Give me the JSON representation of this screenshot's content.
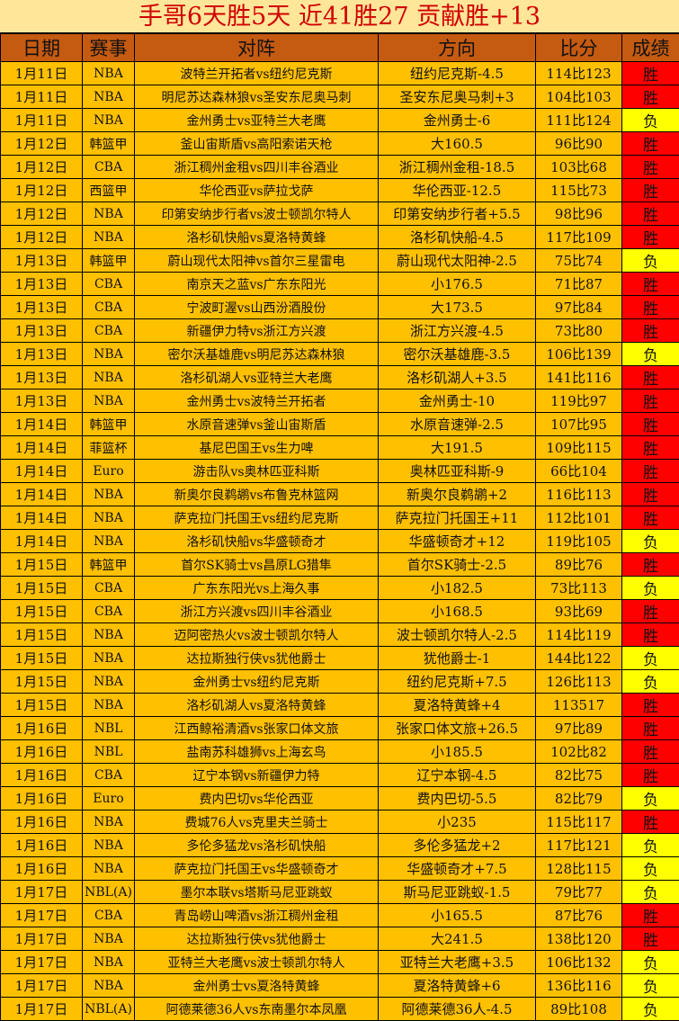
{
  "title": "手哥6天胜5天  近41胜27  贡献胜+13",
  "colors": {
    "header_bg": "#C55A11",
    "row_bg": "#FFC000",
    "win": "#FF0000",
    "loss": "#FFFF00",
    "title_text": "#D00000"
  },
  "headers": [
    "日期",
    "赛事",
    "对阵",
    "方向",
    "比分",
    "成绩"
  ],
  "rows": [
    [
      "1月11日",
      "NBA",
      "波特兰开拓者vs纽约尼克斯",
      "纽约尼克斯-4.5",
      "114比123",
      "胜"
    ],
    [
      "1月11日",
      "NBA",
      "明尼苏达森林狼vs圣安东尼奥马刺",
      "圣安东尼奥马刺+3",
      "104比103",
      "胜"
    ],
    [
      "1月11日",
      "NBA",
      "金州勇士vs亚特兰大老鹰",
      "金州勇士-6",
      "111比124",
      "负"
    ],
    [
      "1月12日",
      "韩篮甲",
      "釜山宙斯盾vs高阳索诺天枪",
      "大160.5",
      "96比90",
      "胜"
    ],
    [
      "1月12日",
      "CBA",
      "浙江稠州金租vs四川丰谷酒业",
      "浙江稠州金租-18.5",
      "103比68",
      "胜"
    ],
    [
      "1月12日",
      "西篮甲",
      "华伦西亚vs萨拉戈萨",
      "华伦西亚-12.5",
      "115比73",
      "胜"
    ],
    [
      "1月12日",
      "NBA",
      "印第安纳步行者vs波士顿凯尔特人",
      "印第安纳步行者+5.5",
      "98比96",
      "胜"
    ],
    [
      "1月12日",
      "NBA",
      "洛杉矶快船vs夏洛特黄蜂",
      "洛杉矶快船-4.5",
      "117比109",
      "胜"
    ],
    [
      "1月13日",
      "韩篮甲",
      "蔚山现代太阳神vs首尔三星雷电",
      "蔚山现代太阳神-2.5",
      "75比74",
      "负"
    ],
    [
      "1月13日",
      "CBA",
      "南京天之蓝vs广东东阳光",
      "小176.5",
      "71比87",
      "胜"
    ],
    [
      "1月13日",
      "CBA",
      "宁波町渥vs山西汾酒股份",
      "大173.5",
      "97比84",
      "胜"
    ],
    [
      "1月13日",
      "CBA",
      "新疆伊力特vs浙江方兴渡",
      "浙江方兴渡-4.5",
      "73比80",
      "胜"
    ],
    [
      "1月13日",
      "NBA",
      "密尔沃基雄鹿vs明尼苏达森林狼",
      "密尔沃基雄鹿-3.5",
      "106比139",
      "负"
    ],
    [
      "1月13日",
      "NBA",
      "洛杉矶湖人vs亚特兰大老鹰",
      "洛杉矶湖人+3.5",
      "141比116",
      "胜"
    ],
    [
      "1月13日",
      "NBA",
      "金州勇士vs波特兰开拓者",
      "金州勇士-10",
      "119比97",
      "胜"
    ],
    [
      "1月14日",
      "韩篮甲",
      "水原音速弹vs釜山宙斯盾",
      "水原音速弹-2.5",
      "107比95",
      "胜"
    ],
    [
      "1月14日",
      "菲篮杯",
      "基尼巴国王vs生力啤",
      "大191.5",
      "109比115",
      "胜"
    ],
    [
      "1月14日",
      "Euro",
      "游击队vs奥林匹亚科斯",
      "奥林匹亚科斯-9",
      "66比104",
      "胜"
    ],
    [
      "1月14日",
      "NBA",
      "新奥尔良鹈鹕vs布鲁克林篮网",
      "新奥尔良鹈鹕+2",
      "116比113",
      "胜"
    ],
    [
      "1月14日",
      "NBA",
      "萨克拉门托国王vs纽约尼克斯",
      "萨克拉门托国王+11",
      "112比101",
      "胜"
    ],
    [
      "1月14日",
      "NBA",
      "洛杉矶快船vs华盛顿奇才",
      "华盛顿奇才+12",
      "119比105",
      "负"
    ],
    [
      "1月15日",
      "韩篮甲",
      "首尔SK骑士vs昌原LG猎隼",
      "首尔SK骑士-2.5",
      "89比76",
      "胜"
    ],
    [
      "1月15日",
      "CBA",
      "广东东阳光vs上海久事",
      "小182.5",
      "73比113",
      "负"
    ],
    [
      "1月15日",
      "CBA",
      "浙江方兴渡vs四川丰谷酒业",
      "小168.5",
      "93比69",
      "胜"
    ],
    [
      "1月15日",
      "NBA",
      "迈阿密热火vs波士顿凯尔特人",
      "波士顿凯尔特人-2.5",
      "114比119",
      "胜"
    ],
    [
      "1月15日",
      "NBA",
      "达拉斯独行侠vs犹他爵士",
      "犹他爵士-1",
      "144比122",
      "负"
    ],
    [
      "1月15日",
      "NBA",
      "金州勇士vs纽约尼克斯",
      "纽约尼克斯+7.5",
      "126比113",
      "负"
    ],
    [
      "1月15日",
      "NBA",
      "洛杉矶湖人vs夏洛特黄蜂",
      "夏洛特黄蜂+4",
      "113517",
      "胜"
    ],
    [
      "1月16日",
      "NBL",
      "江西鲸裕清酒vs张家口体文旅",
      "张家口体文旅+26.5",
      "97比89",
      "胜"
    ],
    [
      "1月16日",
      "NBL",
      "盐南苏科雄狮vs上海玄鸟",
      "小185.5",
      "102比82",
      "胜"
    ],
    [
      "1月16日",
      "CBA",
      "辽宁本钢vs新疆伊力特",
      "辽宁本钢-4.5",
      "82比75",
      "胜"
    ],
    [
      "1月16日",
      "Euro",
      "费内巴切vs华伦西亚",
      "费内巴切-5.5",
      "82比79",
      "负"
    ],
    [
      "1月16日",
      "NBA",
      "费城76人vs克里夫兰骑士",
      "小235",
      "115比117",
      "胜"
    ],
    [
      "1月16日",
      "NBA",
      "多伦多猛龙vs洛杉矶快船",
      "多伦多猛龙+2",
      "117比121",
      "负"
    ],
    [
      "1月16日",
      "NBA",
      "萨克拉门托国王vs华盛顿奇才",
      "华盛顿奇才+7.5",
      "128比115",
      "负"
    ],
    [
      "1月17日",
      "NBL(A)",
      "墨尔本联vs塔斯马尼亚跳蚁",
      "斯马尼亚跳蚁-1.5",
      "79比77",
      "负"
    ],
    [
      "1月17日",
      "CBA",
      "青岛崂山啤酒vs浙江稠州金租",
      "小165.5",
      "87比76",
      "胜"
    ],
    [
      "1月17日",
      "NBA",
      "达拉斯独行侠vs犹他爵士",
      "大241.5",
      "138比120",
      "胜"
    ],
    [
      "1月17日",
      "NBA",
      "亚特兰大老鹰vs波士顿凯尔特人",
      "亚特兰大老鹰+3.5",
      "106比132",
      "负"
    ],
    [
      "1月17日",
      "NBA",
      "金州勇士vs夏洛特黄蜂",
      "夏洛特黄蜂+6",
      "136比116",
      "负"
    ],
    [
      "1月17日",
      "NBL(A)",
      "阿德莱德36人vs东南墨尔本凤凰",
      "阿德莱德36人-4.5",
      "89比108",
      "负"
    ]
  ]
}
